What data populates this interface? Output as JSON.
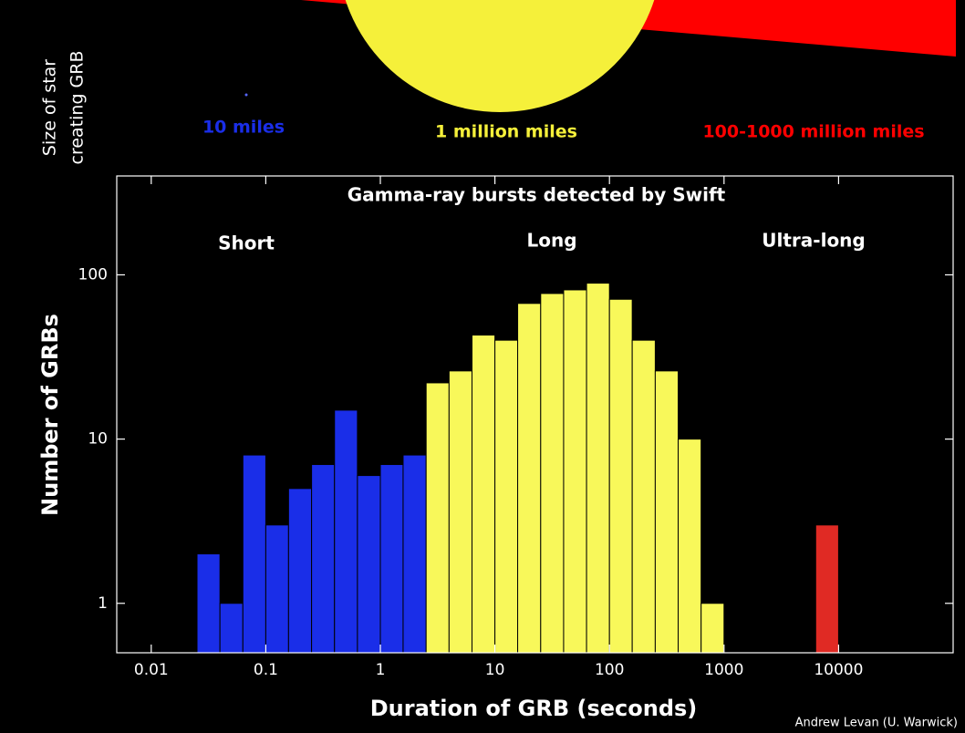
{
  "chart_data": {
    "type": "histogram",
    "title": "Gamma-ray bursts detected by Swift",
    "x_label": "Duration of GRB (seconds)",
    "y_label": "Number of GRBs",
    "xscale": "log",
    "yscale": "log",
    "xlim": [
      0.005,
      100000
    ],
    "ylim": [
      0.5,
      400
    ],
    "xticks": [
      0.01,
      0.1,
      1,
      10,
      100,
      1000,
      10000
    ],
    "yticks": [
      1,
      10,
      100
    ],
    "series": [
      {
        "name": "Short",
        "color": "#1a2ee8",
        "bins": [
          0.0251,
          0.0398,
          0.0631,
          0.1,
          0.158,
          0.251,
          0.398,
          0.631,
          1,
          1.58,
          2.51
        ],
        "values": [
          2,
          1,
          8,
          3,
          5,
          7,
          15,
          6,
          7,
          8
        ]
      },
      {
        "name": "Long",
        "color": "#f8f85a",
        "bins": [
          2.51,
          3.98,
          6.31,
          10,
          15.8,
          25.1,
          39.8,
          63.1,
          100,
          158,
          251,
          398,
          631,
          1000
        ],
        "values": [
          22,
          26,
          43,
          40,
          67,
          77,
          81,
          89,
          71,
          40,
          26,
          10,
          1
        ]
      },
      {
        "name": "Ultra-long",
        "color": "#e02a24",
        "bins": [
          6310,
          10000
        ],
        "values": [
          3
        ]
      }
    ]
  },
  "illustration": {
    "label": [
      "Size of star",
      "creating GRB"
    ],
    "sizes": [
      {
        "text": "10 miles",
        "color": "#1a2ee8"
      },
      {
        "text": "1 million miles",
        "color": "#f5f03a"
      },
      {
        "text": "100-1000 million miles",
        "color": "#ff0000"
      }
    ]
  },
  "credit": "Andrew Levan (U. Warwick)"
}
